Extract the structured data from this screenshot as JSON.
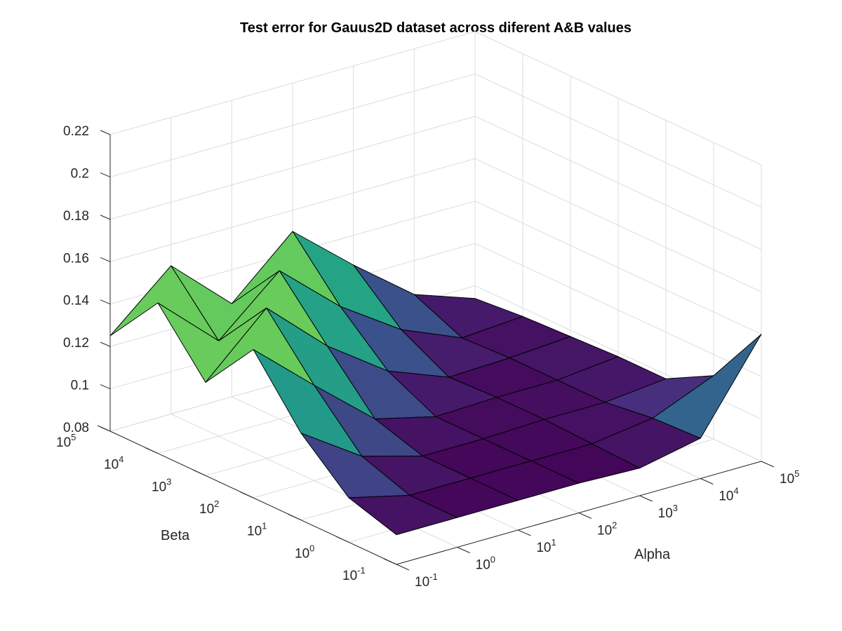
{
  "chart_data": {
    "type": "surface",
    "title": "Test error for Gauus2D dataset across diferent A&B values",
    "xlabel": "Alpha",
    "ylabel": "Beta",
    "zlabel": "",
    "x_scale": "log",
    "y_scale": "log",
    "x_exponents": [
      -1,
      0,
      1,
      2,
      3,
      4,
      5
    ],
    "y_exponents": [
      -1,
      0,
      1,
      2,
      3,
      4,
      5
    ],
    "x_tick_labels": [
      {
        "base": "10",
        "exp": "-1"
      },
      {
        "base": "10",
        "exp": "0"
      },
      {
        "base": "10",
        "exp": "1"
      },
      {
        "base": "10",
        "exp": "2"
      },
      {
        "base": "10",
        "exp": "3"
      },
      {
        "base": "10",
        "exp": "4"
      },
      {
        "base": "10",
        "exp": "5"
      }
    ],
    "y_tick_labels": [
      {
        "base": "10",
        "exp": "-1"
      },
      {
        "base": "10",
        "exp": "0"
      },
      {
        "base": "10",
        "exp": "1"
      },
      {
        "base": "10",
        "exp": "2"
      },
      {
        "base": "10",
        "exp": "3"
      },
      {
        "base": "10",
        "exp": "4"
      },
      {
        "base": "10",
        "exp": "5"
      }
    ],
    "z_ticks": [
      0.08,
      0.1,
      0.12,
      0.14,
      0.16,
      0.18,
      0.2,
      0.22
    ],
    "z_tick_labels": [
      "0.08",
      "0.1",
      "0.12",
      "0.14",
      "0.16",
      "0.18",
      "0.2",
      "0.22"
    ],
    "zlim": [
      0.08,
      0.22
    ],
    "grid": true,
    "colormap": [
      "#440154",
      "#472f7d",
      "#3b518b",
      "#2c718e",
      "#21908d",
      "#27ad81",
      "#5cc863",
      "#aadc32",
      "#fde725"
    ],
    "z_values_rows_beta_cols_alpha": [
      [
        0.094,
        0.094,
        0.094,
        0.094,
        0.093,
        0.099,
        0.14
      ],
      [
        0.101,
        0.094,
        0.094,
        0.094,
        0.094,
        0.098,
        0.11
      ],
      [
        0.121,
        0.102,
        0.094,
        0.094,
        0.095,
        0.095,
        0.098
      ],
      [
        0.15,
        0.125,
        0.101,
        0.094,
        0.095,
        0.095,
        0.098
      ],
      [
        0.124,
        0.151,
        0.125,
        0.105,
        0.094,
        0.095,
        0.097
      ],
      [
        0.151,
        0.125,
        0.15,
        0.125,
        0.106,
        0.094,
        0.096
      ],
      [
        0.125,
        0.15,
        0.124,
        0.15,
        0.126,
        0.104,
        0.094
      ]
    ]
  }
}
